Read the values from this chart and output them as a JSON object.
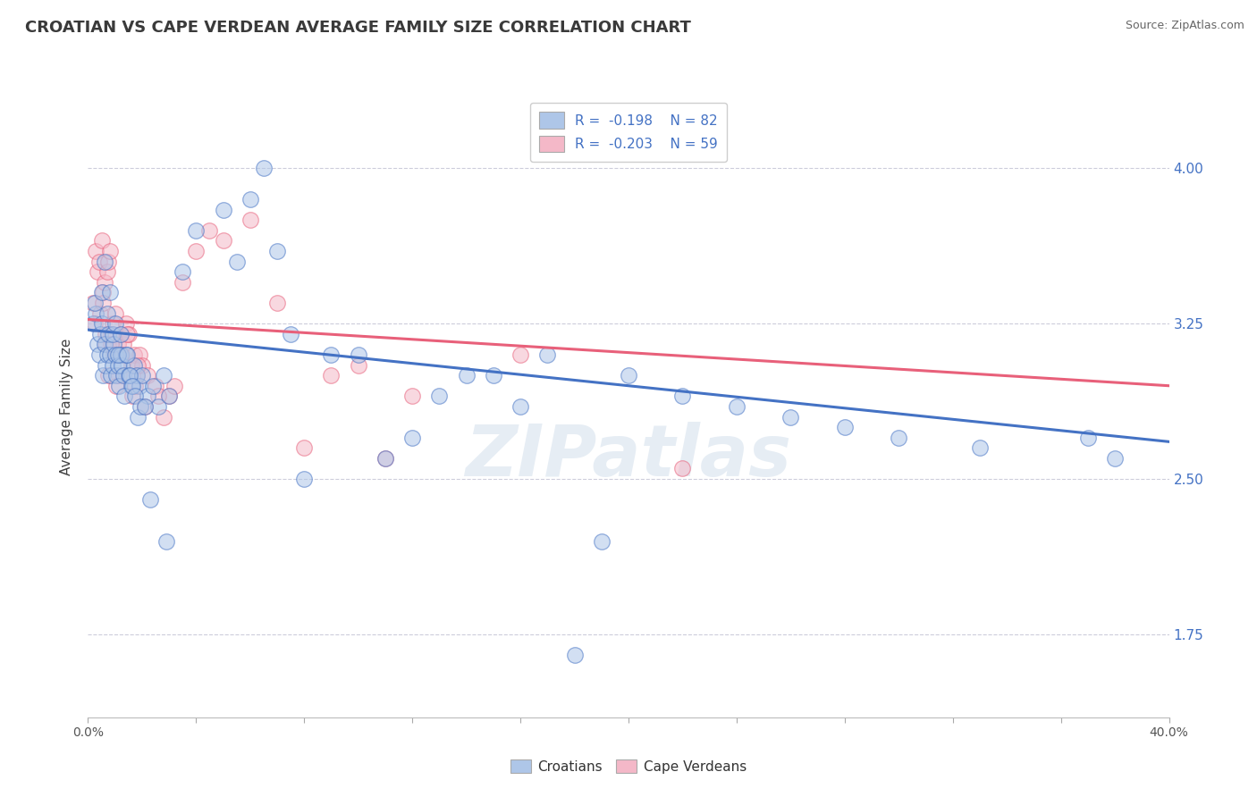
{
  "title": "CROATIAN VS CAPE VERDEAN AVERAGE FAMILY SIZE CORRELATION CHART",
  "source_text": "Source: ZipAtlas.com",
  "ylabel": "Average Family Size",
  "xmin": 0.0,
  "xmax": 40.0,
  "ymin": 1.35,
  "ymax": 4.35,
  "yticks_right": [
    1.75,
    2.5,
    3.25,
    4.0
  ],
  "blue_color": "#aec6e8",
  "pink_color": "#f4b8c8",
  "blue_line_color": "#4472c4",
  "pink_line_color": "#e8607a",
  "legend_blue_label": "R =  -0.198    N = 82",
  "legend_pink_label": "R =  -0.203    N = 59",
  "croatians_label": "Croatians",
  "cape_verdeans_label": "Cape Verdeans",
  "watermark": "ZIPatlas",
  "title_color": "#3a3a3a",
  "source_color": "#666666",
  "background_color": "#ffffff",
  "grid_color": "#c8c8d8",
  "blue_trend_start_y": 3.22,
  "blue_trend_end_y": 2.68,
  "pink_trend_start_y": 3.27,
  "pink_trend_end_y": 2.95,
  "blue_scatter_x": [
    0.2,
    0.3,
    0.35,
    0.4,
    0.45,
    0.5,
    0.55,
    0.6,
    0.65,
    0.7,
    0.75,
    0.8,
    0.85,
    0.9,
    0.95,
    1.0,
    1.05,
    1.1,
    1.15,
    1.2,
    1.25,
    1.3,
    1.4,
    1.5,
    1.6,
    1.7,
    1.8,
    1.9,
    2.0,
    2.2,
    2.4,
    2.6,
    2.8,
    3.0,
    3.5,
    4.0,
    5.0,
    5.5,
    6.0,
    6.5,
    7.0,
    7.5,
    8.0,
    9.0,
    10.0,
    11.0,
    12.0,
    13.0,
    14.0,
    15.0,
    16.0,
    17.0,
    18.0,
    19.0,
    20.0,
    22.0,
    24.0,
    26.0,
    28.0,
    30.0,
    33.0,
    37.0,
    38.0,
    0.25,
    0.5,
    0.6,
    0.7,
    0.8,
    0.9,
    1.0,
    1.1,
    1.2,
    1.35,
    1.45,
    1.55,
    1.65,
    1.75,
    1.85,
    1.95,
    2.1,
    2.3,
    2.9
  ],
  "blue_scatter_y": [
    3.25,
    3.3,
    3.15,
    3.1,
    3.2,
    3.25,
    3.0,
    3.15,
    3.05,
    3.1,
    3.2,
    3.1,
    3.0,
    3.05,
    3.15,
    3.1,
    3.0,
    3.05,
    2.95,
    3.1,
    3.05,
    3.0,
    3.1,
    3.0,
    2.95,
    3.05,
    3.0,
    2.95,
    3.0,
    2.9,
    2.95,
    2.85,
    3.0,
    2.9,
    3.5,
    3.7,
    3.8,
    3.55,
    3.85,
    4.0,
    3.6,
    3.2,
    2.5,
    3.1,
    3.1,
    2.6,
    2.7,
    2.9,
    3.0,
    3.0,
    2.85,
    3.1,
    1.65,
    2.2,
    3.0,
    2.9,
    2.85,
    2.8,
    2.75,
    2.7,
    2.65,
    2.7,
    2.6,
    3.35,
    3.4,
    3.55,
    3.3,
    3.4,
    3.2,
    3.25,
    3.1,
    3.2,
    2.9,
    3.1,
    3.0,
    2.95,
    2.9,
    2.8,
    2.85,
    2.85,
    2.4,
    2.2
  ],
  "pink_scatter_x": [
    0.2,
    0.3,
    0.35,
    0.4,
    0.45,
    0.5,
    0.55,
    0.6,
    0.65,
    0.7,
    0.75,
    0.8,
    0.85,
    0.9,
    0.95,
    1.0,
    1.05,
    1.1,
    1.15,
    1.2,
    1.3,
    1.4,
    1.5,
    1.6,
    1.7,
    1.8,
    1.9,
    2.0,
    2.2,
    2.5,
    2.8,
    3.0,
    3.5,
    4.0,
    4.5,
    5.0,
    6.0,
    7.0,
    8.0,
    9.0,
    10.0,
    11.0,
    12.0,
    16.0,
    22.0,
    0.25,
    0.55,
    0.65,
    0.75,
    0.85,
    1.05,
    1.25,
    1.45,
    1.65,
    1.75,
    1.85,
    2.1,
    2.6,
    3.2
  ],
  "pink_scatter_y": [
    3.35,
    3.6,
    3.5,
    3.55,
    3.3,
    3.65,
    3.4,
    3.45,
    3.2,
    3.5,
    3.55,
    3.6,
    3.2,
    3.25,
    3.1,
    3.3,
    3.1,
    3.15,
    3.0,
    3.2,
    3.15,
    3.25,
    3.2,
    3.05,
    3.1,
    3.0,
    3.1,
    3.05,
    3.0,
    2.95,
    2.8,
    2.9,
    3.45,
    3.6,
    3.7,
    3.65,
    3.75,
    3.35,
    2.65,
    3.0,
    3.05,
    2.6,
    2.9,
    3.1,
    2.55,
    3.25,
    3.35,
    3.15,
    3.0,
    3.15,
    2.95,
    3.1,
    3.2,
    2.9,
    2.95,
    3.05,
    2.85,
    2.9,
    2.95
  ]
}
